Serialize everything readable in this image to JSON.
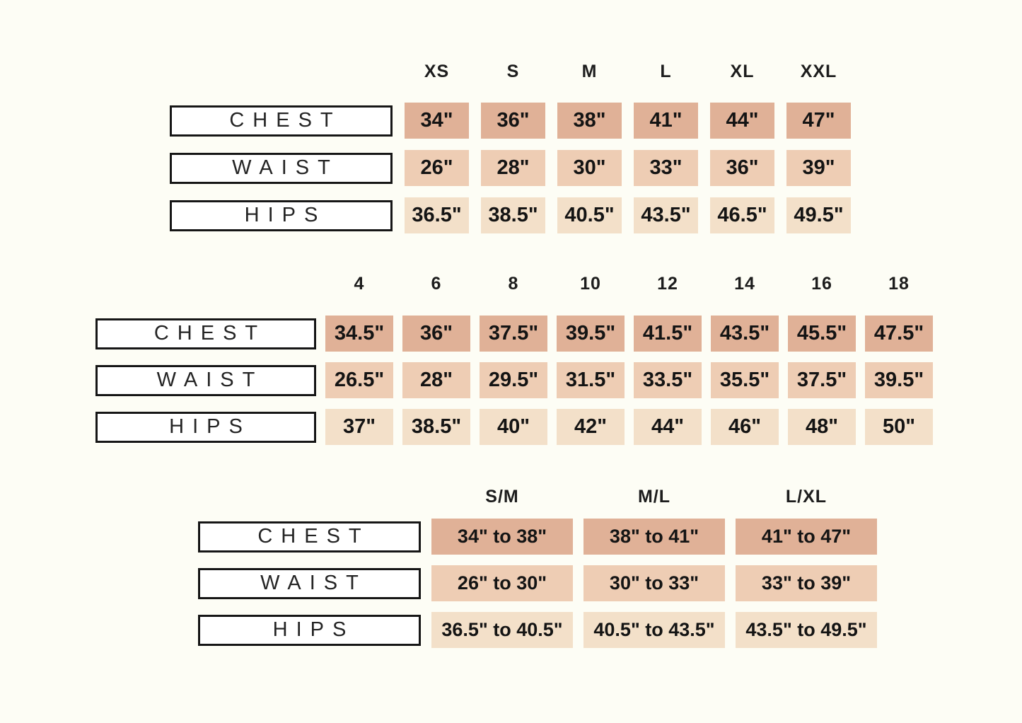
{
  "colors": {
    "page_bg": "#fdfdf5",
    "chest": "#e0b197",
    "waist": "#eecdb4",
    "hips": "#f3e0c9",
    "border": "#161616"
  },
  "chart_data": [
    {
      "type": "table",
      "name": "letter-sizes",
      "columns": [
        "XS",
        "S",
        "M",
        "L",
        "XL",
        "XXL"
      ],
      "rows": [
        {
          "label": "CHEST",
          "values": [
            "34\"",
            "36\"",
            "38\"",
            "41\"",
            "44\"",
            "47\""
          ]
        },
        {
          "label": "WAIST",
          "values": [
            "26\"",
            "28\"",
            "30\"",
            "33\"",
            "36\"",
            "39\""
          ]
        },
        {
          "label": "HIPS",
          "values": [
            "36.5\"",
            "38.5\"",
            "40.5\"",
            "43.5\"",
            "46.5\"",
            "49.5\""
          ]
        }
      ]
    },
    {
      "type": "table",
      "name": "numeric-sizes",
      "columns": [
        "4",
        "6",
        "8",
        "10",
        "12",
        "14",
        "16",
        "18"
      ],
      "rows": [
        {
          "label": "CHEST",
          "values": [
            "34.5\"",
            "36\"",
            "37.5\"",
            "39.5\"",
            "41.5\"",
            "43.5\"",
            "45.5\"",
            "47.5\""
          ]
        },
        {
          "label": "WAIST",
          "values": [
            "26.5\"",
            "28\"",
            "29.5\"",
            "31.5\"",
            "33.5\"",
            "35.5\"",
            "37.5\"",
            "39.5\""
          ]
        },
        {
          "label": "HIPS",
          "values": [
            "37\"",
            "38.5\"",
            "40\"",
            "42\"",
            "44\"",
            "46\"",
            "48\"",
            "50\""
          ]
        }
      ]
    },
    {
      "type": "table",
      "name": "range-sizes",
      "columns": [
        "S/M",
        "M/L",
        "L/XL"
      ],
      "rows": [
        {
          "label": "CHEST",
          "values": [
            "34\" to 38\"",
            "38\" to 41\"",
            "41\" to 47\""
          ]
        },
        {
          "label": "WAIST",
          "values": [
            "26\" to 30\"",
            "30\" to 33\"",
            "33\" to 39\""
          ]
        },
        {
          "label": "HIPS",
          "values": [
            "36.5\" to 40.5\"",
            "40.5\" to 43.5\"",
            "43.5\" to 49.5\""
          ]
        }
      ]
    }
  ]
}
